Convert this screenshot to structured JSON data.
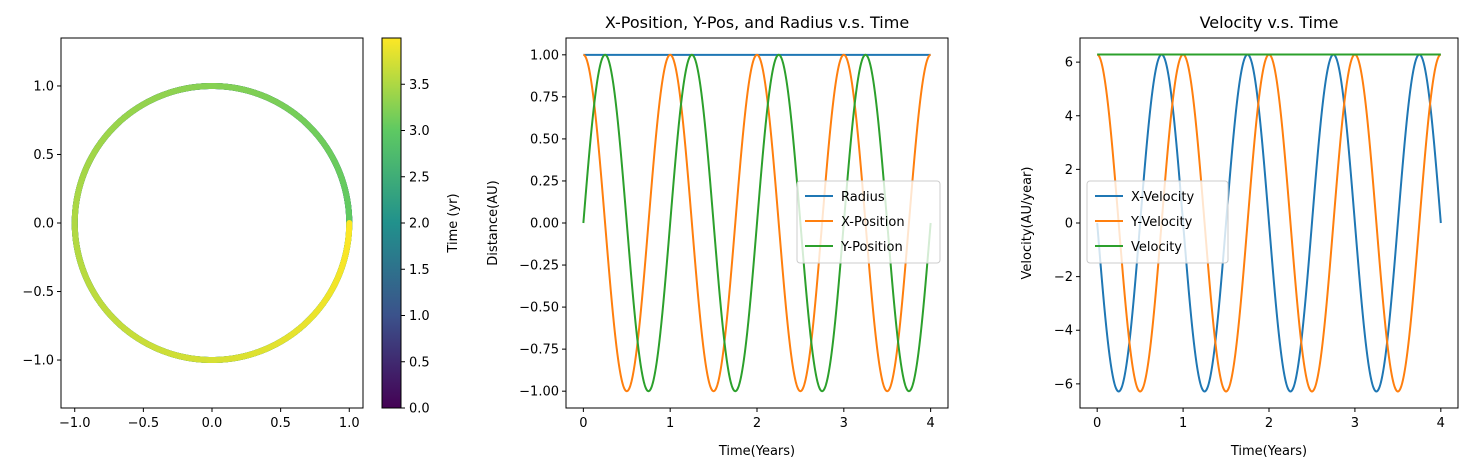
{
  "chart_data": [
    {
      "type": "scatter",
      "description_series": "Orbit path colored by time",
      "x_function": "cos(2*pi*t)",
      "y_function": "sin(2*pi*t)",
      "t_range": [
        0,
        4
      ],
      "xlim": [
        -1.1,
        1.1
      ],
      "ylim": [
        -1.35,
        1.35
      ],
      "xticks": [
        -1.0,
        -0.5,
        0.0,
        0.5,
        1.0
      ],
      "xtick_labels": [
        "−1.0",
        "−0.5",
        "0.0",
        "0.5",
        "1.0"
      ],
      "yticks": [
        -1.0,
        -0.5,
        0.0,
        0.5,
        1.0
      ],
      "ytick_labels": [
        "−1.0",
        "−0.5",
        "0.0",
        "0.5",
        "1.0"
      ],
      "colorbar": {
        "label": "Time (yr)",
        "range": [
          0,
          4
        ],
        "ticks": [
          0.0,
          0.5,
          1.0,
          1.5,
          2.0,
          2.5,
          3.0,
          3.5
        ],
        "tick_labels": [
          "0.0",
          "0.5",
          "1.0",
          "1.5",
          "2.0",
          "2.5",
          "3.0",
          "3.5"
        ],
        "colormap": [
          "#440154",
          "#3b528b",
          "#21918c",
          "#5ec962",
          "#fde725"
        ]
      }
    },
    {
      "type": "line",
      "title": "X-Position, Y-Pos, and Radius v.s. Time",
      "xlabel": "Time(Years)",
      "ylabel": "Distance(AU)",
      "xlim": [
        -0.2,
        4.2
      ],
      "ylim": [
        -1.1,
        1.1
      ],
      "xticks": [
        0,
        1,
        2,
        3,
        4
      ],
      "xtick_labels": [
        "0",
        "1",
        "2",
        "3",
        "4"
      ],
      "yticks": [
        1.0,
        0.75,
        0.5,
        0.25,
        0.0,
        -0.25,
        -0.5,
        -0.75,
        -1.0
      ],
      "ytick_labels": [
        "1.00",
        "0.75",
        "0.50",
        "0.25",
        "0.00",
        "−0.25",
        "−0.50",
        "−0.75",
        "−1.00"
      ],
      "legend_position": "center-right",
      "series": [
        {
          "name": "Radius",
          "color": "#1f77b4",
          "function": "1",
          "x": [
            0,
            4
          ]
        },
        {
          "name": "X-Position",
          "color": "#ff7f0e",
          "function": "cos(2*pi*t)",
          "x": [
            0,
            4
          ]
        },
        {
          "name": "Y-Position",
          "color": "#2ca02c",
          "function": "sin(2*pi*t)",
          "x": [
            0,
            4
          ]
        }
      ]
    },
    {
      "type": "line",
      "title": "Velocity v.s. Time",
      "xlabel": "Time(Years)",
      "ylabel": "Velocity(AU/year)",
      "xlim": [
        -0.2,
        4.2
      ],
      "ylim": [
        -6.9,
        6.9
      ],
      "xticks": [
        0,
        1,
        2,
        3,
        4
      ],
      "xtick_labels": [
        "0",
        "1",
        "2",
        "3",
        "4"
      ],
      "yticks": [
        6,
        4,
        2,
        0,
        -2,
        -4,
        -6
      ],
      "ytick_labels": [
        "6",
        "4",
        "2",
        "0",
        "−2",
        "−4",
        "−6"
      ],
      "legend_position": "center-left",
      "series": [
        {
          "name": "X-Velocity",
          "color": "#1f77b4",
          "function": "-2*pi*sin(2*pi*t)",
          "x": [
            0,
            4
          ]
        },
        {
          "name": "Y-Velocity",
          "color": "#ff7f0e",
          "function": "2*pi*cos(2*pi*t)",
          "x": [
            0,
            4
          ]
        },
        {
          "name": "Velocity",
          "color": "#2ca02c",
          "function": "2*pi",
          "x": [
            0,
            4
          ]
        }
      ]
    }
  ]
}
